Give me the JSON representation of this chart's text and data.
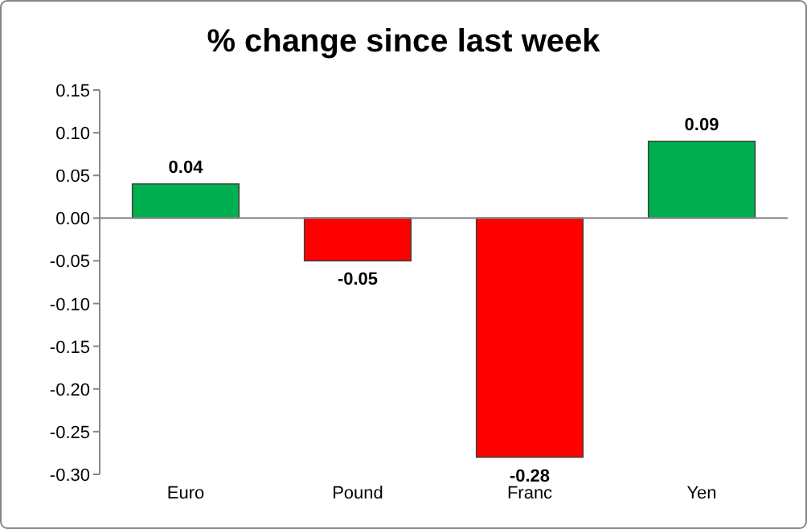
{
  "chart_data": {
    "type": "bar",
    "title": "% change since last week",
    "categories": [
      "Euro",
      "Pound",
      "Franc",
      "Yen"
    ],
    "values": [
      0.04,
      -0.05,
      -0.28,
      0.09
    ],
    "colors": [
      "#00b050",
      "#ff0000",
      "#ff0000",
      "#00b050"
    ],
    "value_labels": [
      "0.04",
      "-0.05",
      "-0.28",
      "0.09"
    ],
    "ylim": [
      -0.3,
      0.15
    ],
    "yticks": [
      {
        "value": 0.15,
        "label": "0.15"
      },
      {
        "value": 0.1,
        "label": "0.10"
      },
      {
        "value": 0.05,
        "label": "0.05"
      },
      {
        "value": 0,
        "label": "0.00"
      },
      {
        "value": -0.05,
        "label": "-0.05"
      },
      {
        "value": -0.1,
        "label": "-0.10"
      },
      {
        "value": -0.15,
        "label": "-0.15"
      },
      {
        "value": -0.2,
        "label": "-0.20"
      },
      {
        "value": -0.25,
        "label": "-0.25"
      },
      {
        "value": -0.3,
        "label": "-0.30"
      }
    ]
  }
}
